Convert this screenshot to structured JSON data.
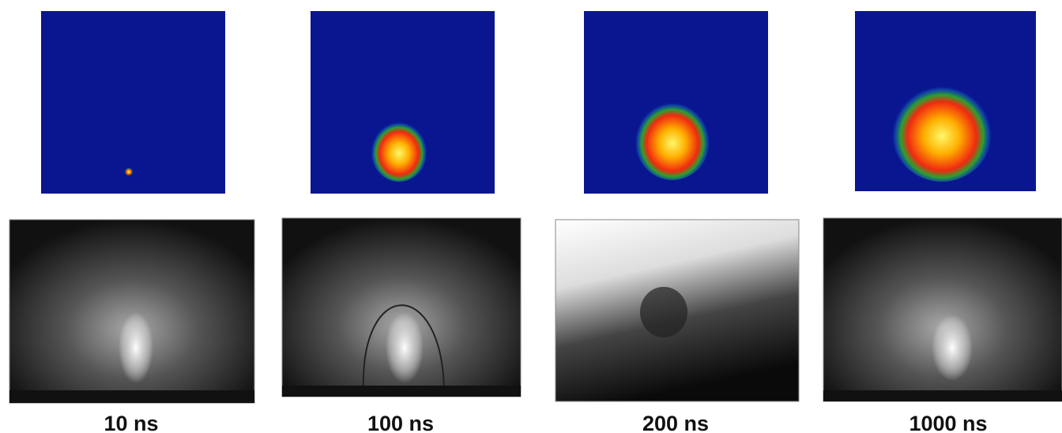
{
  "panels": [
    {
      "label": "10 ns"
    },
    {
      "label": "100 ns"
    },
    {
      "label": "200 ns"
    },
    {
      "label": "1000 ns"
    }
  ]
}
